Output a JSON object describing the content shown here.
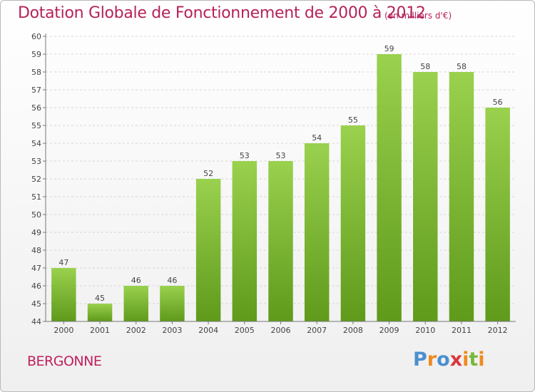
{
  "header": {
    "title": "Dotation Globale de Fonctionnement de 2000 à 2012",
    "subtitle": "(en milliers d'€)"
  },
  "footer": {
    "commune": "BERGONNE",
    "logo": "Proxiti"
  },
  "colors": {
    "title": "#b5225a",
    "bar_top": "#9ad14e",
    "bar_bottom": "#5f9a1b",
    "grid": "#d6d6d6"
  },
  "chart_data": {
    "type": "bar",
    "title": "Dotation Globale de Fonctionnement de 2000 à 2012",
    "subtitle": "(en milliers d'€)",
    "xlabel": "",
    "ylabel": "",
    "categories": [
      "2000",
      "2001",
      "2002",
      "2003",
      "2004",
      "2005",
      "2006",
      "2007",
      "2008",
      "2009",
      "2010",
      "2011",
      "2012"
    ],
    "values": [
      47,
      45,
      46,
      46,
      52,
      53,
      53,
      54,
      55,
      59,
      58,
      58,
      56
    ],
    "ylim": [
      44,
      60
    ],
    "yticks": [
      44,
      45,
      46,
      47,
      48,
      49,
      50,
      51,
      52,
      53,
      54,
      55,
      56,
      57,
      58,
      59,
      60
    ],
    "grid": true,
    "data_labels": true
  }
}
